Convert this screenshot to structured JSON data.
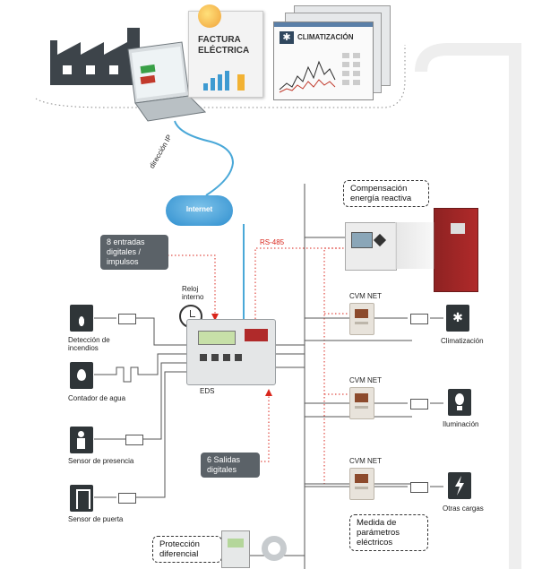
{
  "screens": {
    "factura": "FACTURA ELÉCTRICA",
    "climatizacion": "CLIMATIZACIÓN"
  },
  "network": {
    "ip_label": "dirección IP",
    "internet": "Internet",
    "rs485": "RS-485",
    "entradas": "8 entradas digitales / impulsos",
    "reloj": "Reloj interno",
    "eds": "EDS",
    "salidas": "6 Salidas digitales"
  },
  "inputs": [
    {
      "label": "Detección de incendios",
      "icon": "flame-sensor-icon"
    },
    {
      "label": "Contador de agua",
      "icon": "water-drop-icon"
    },
    {
      "label": "Sensor de presencia",
      "icon": "person-icon"
    },
    {
      "label": "Sensor de puerta",
      "icon": "door-icon"
    }
  ],
  "meters": {
    "label": "CVM NET"
  },
  "outputs": [
    {
      "label": "Climatización",
      "icon": "snowflake-icon"
    },
    {
      "label": "Iluminación",
      "icon": "bulb-icon"
    },
    {
      "label": "Otras cargas",
      "icon": "lightning-icon"
    }
  ],
  "callouts": {
    "compensacion": "Compensación energía reactiva",
    "medida": "Medida de parámetros eléctricos",
    "proteccion": "Protección diferencial"
  },
  "colors": {
    "cable": "#4aa8d8",
    "wire": "#555555",
    "rs485": "#d9261c",
    "panel": "#b02a2a"
  }
}
